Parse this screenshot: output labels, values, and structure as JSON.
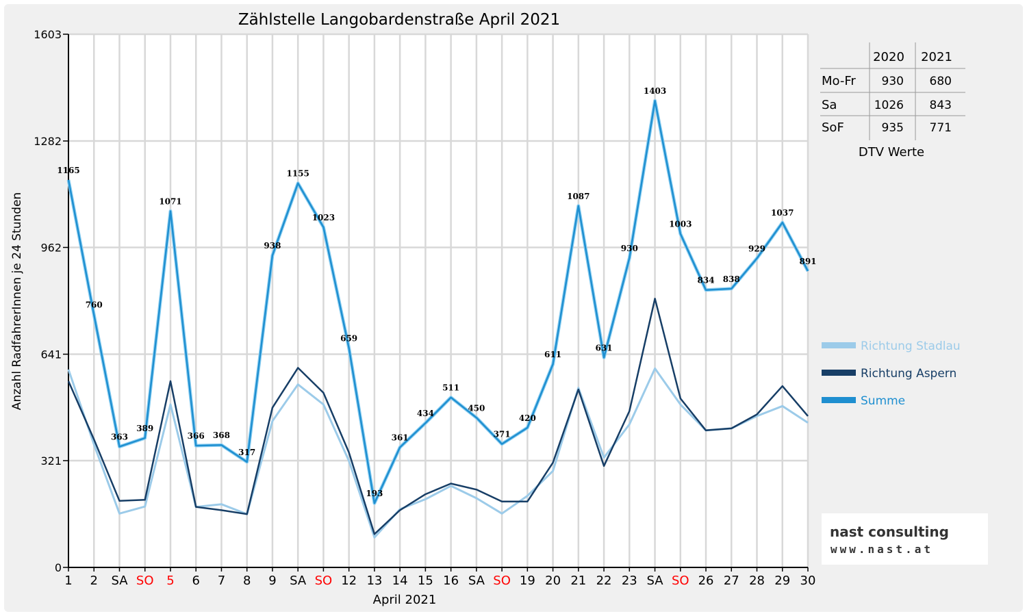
{
  "chart_data": {
    "type": "line",
    "title": "Zählstelle Langobardenstraße April 2021",
    "xlabel": "April 2021",
    "ylabel": "Anzahl RadfahrerInnen je 24 Stunden",
    "ylim": [
      0,
      1603
    ],
    "yticks": [
      0,
      321,
      641,
      962,
      1282,
      1603
    ],
    "grid": true,
    "legend_position": "right",
    "categories": [
      "1",
      "2",
      "SA",
      "SO",
      "5",
      "6",
      "7",
      "8",
      "9",
      "SA",
      "SO",
      "12",
      "13",
      "14",
      "15",
      "16",
      "SA",
      "SO",
      "19",
      "20",
      "21",
      "22",
      "23",
      "SA",
      "SO",
      "26",
      "27",
      "28",
      "29",
      "30"
    ],
    "red_categories": [
      3,
      4,
      10,
      17,
      24
    ],
    "series": [
      {
        "name": "Richtung Stadlau",
        "color": "#9ccbe9",
        "values": [
          595,
          370,
          162,
          183,
          490,
          182,
          190,
          160,
          440,
          550,
          490,
          320,
          90,
          175,
          205,
          245,
          208,
          162,
          215,
          290,
          540,
          330,
          430,
          598,
          490,
          412,
          418,
          455,
          485,
          435
        ]
      },
      {
        "name": "Richtung Aspern",
        "color": "#173e66",
        "values": [
          560,
          385,
          200,
          203,
          560,
          182,
          172,
          160,
          480,
          600,
          525,
          345,
          100,
          172,
          220,
          252,
          234,
          198,
          198,
          315,
          535,
          305,
          470,
          808,
          508,
          412,
          418,
          460,
          545,
          455
        ]
      },
      {
        "name": "Summe",
        "color": "#1f8fd0",
        "values": [
          1165,
          760,
          363,
          389,
          1071,
          366,
          368,
          317,
          938,
          1155,
          1023,
          659,
          193,
          361,
          434,
          511,
          450,
          371,
          420,
          611,
          1087,
          631,
          930,
          1403,
          1003,
          834,
          838,
          929,
          1037,
          891
        ]
      }
    ],
    "data_labels": [
      "1165",
      "760",
      "363",
      "389",
      "1071",
      "366",
      "368",
      "317",
      "938",
      "1155",
      "1023",
      "659",
      "193",
      "361",
      "434",
      "511",
      "450",
      "371",
      "420",
      "611",
      "1087",
      "631",
      "930",
      "1403",
      "1003",
      "834",
      "838",
      "929",
      "1037",
      "891"
    ]
  },
  "dtv_table": {
    "caption": "DTV Werte",
    "columns": [
      "2020",
      "2021"
    ],
    "rows": [
      {
        "label": "Mo-Fr",
        "v2020": "930",
        "v2021": "680"
      },
      {
        "label": "Sa",
        "v2020": "1026",
        "v2021": "843"
      },
      {
        "label": "SoF",
        "v2020": "935",
        "v2021": "771"
      }
    ]
  },
  "logo": {
    "line1": "nast consulting",
    "line2": "www.nast.at"
  }
}
